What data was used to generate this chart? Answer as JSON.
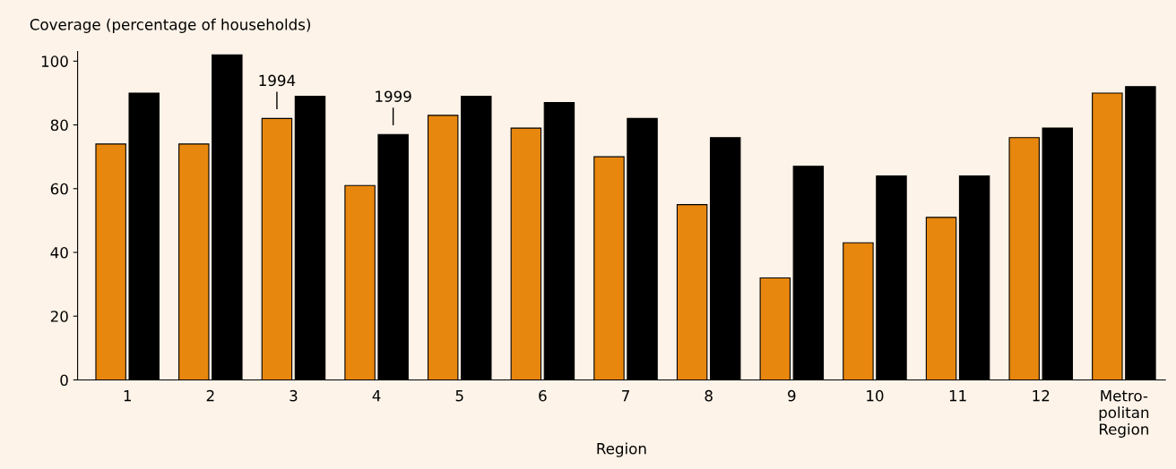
{
  "chart_data": {
    "type": "bar",
    "ylabel": "Coverage (percentage of households)",
    "xlabel": "Region",
    "categories": [
      "1",
      "2",
      "3",
      "4",
      "5",
      "6",
      "7",
      "8",
      "9",
      "10",
      "11",
      "12",
      "Metro-\npolitan\nRegion"
    ],
    "series": [
      {
        "color": "#e8870e",
        "values": [
          74,
          74,
          82,
          61,
          83,
          79,
          70,
          55,
          32,
          43,
          51,
          76,
          90
        ]
      },
      {
        "color": "#000000",
        "values": [
          90,
          102,
          89,
          77,
          89,
          87,
          82,
          76,
          67,
          64,
          64,
          79,
          92
        ]
      }
    ],
    "ylim": [
      0,
      103
    ],
    "yticks": [
      0,
      20,
      40,
      60,
      80,
      100
    ],
    "grid": false,
    "legend": false,
    "annotations": [
      {
        "text": "1994",
        "x": "3",
        "y": 82
      },
      {
        "text": "1999",
        "x": "4",
        "y": 77
      }
    ]
  }
}
